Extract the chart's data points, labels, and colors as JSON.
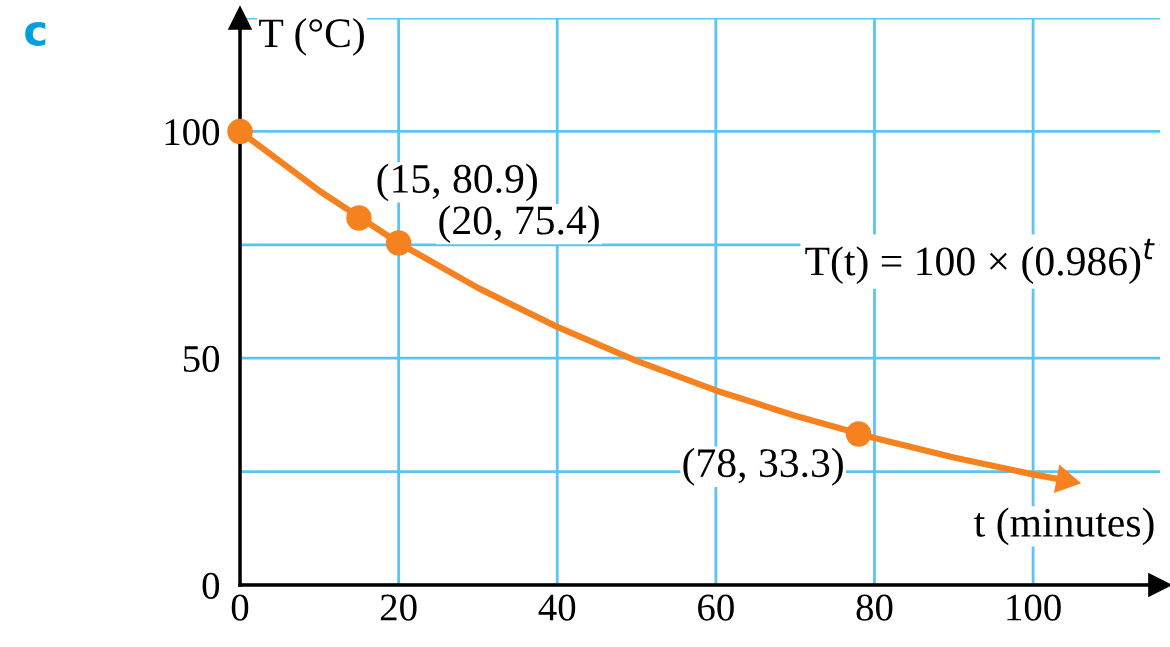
{
  "chart_data": {
    "type": "line",
    "xlabel": "t (minutes)",
    "ylabel": "T (°C)",
    "xlim": [
      0,
      116
    ],
    "ylim": [
      0,
      125
    ],
    "xticks": [
      0,
      20,
      40,
      60,
      80,
      100
    ],
    "yticks": [
      0,
      {
        "value": 25,
        "label": null
      },
      50,
      {
        "value": 75,
        "label": null
      },
      100,
      {
        "value": 125,
        "label": null
      }
    ],
    "grid": true,
    "line_style": "solid",
    "series": [
      {
        "type": "line",
        "color": "#f5821f",
        "marker": "none",
        "x": [
          0,
          10,
          20,
          30,
          40,
          50,
          60,
          70,
          80,
          90,
          100,
          104
        ],
        "values": [
          100,
          86.9,
          75.4,
          65.5,
          56.9,
          49.4,
          42.9,
          37.3,
          32.4,
          28.1,
          24.4,
          23.1
        ]
      },
      {
        "type": "scatter",
        "color": "#f5821f",
        "marker": "circle",
        "x": [
          0,
          15,
          20,
          78
        ],
        "values": [
          100,
          80.9,
          75.4,
          33.3
        ]
      }
    ],
    "annotations": [
      "c",
      {
        "text": "(15, 80.9)",
        "x": 15,
        "y": 80.9
      },
      {
        "text": "(20, 75.4)",
        "x": 20,
        "y": 75.4
      },
      {
        "text": "(78, 33.3)",
        "x": 78,
        "y": 33.3
      },
      "T(t) = 100 × (0.986)$^{t}$"
    ]
  }
}
